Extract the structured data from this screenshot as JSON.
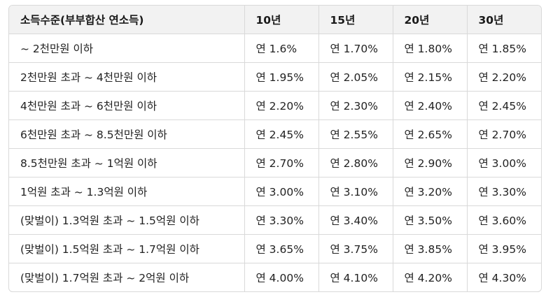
{
  "table": {
    "headers": [
      "소득수준(부부합산 연소득)",
      "10년",
      "15년",
      "20년",
      "30년"
    ],
    "rows": [
      [
        "~ 2천만원 이하",
        "연 1.6%",
        "연 1.70%",
        "연 1.80%",
        "연 1.85%"
      ],
      [
        "2천만원 초과 ~ 4천만원 이하",
        "연 1.95%",
        "연 2.05%",
        "연 2.15%",
        "연 2.20%"
      ],
      [
        "4천만원 초과 ~ 6천만원 이하",
        "연 2.20%",
        "연 2.30%",
        "연 2.40%",
        "연 2.45%"
      ],
      [
        "6천만원 초과 ~ 8.5천만원 이하",
        "연 2.45%",
        "연 2.55%",
        "연 2.65%",
        "연 2.70%"
      ],
      [
        "8.5천만원 초과 ~ 1억원 이하",
        "연 2.70%",
        "연 2.80%",
        "연 2.90%",
        "연 3.00%"
      ],
      [
        "1억원 초과 ~ 1.3억원 이하",
        "연 3.00%",
        "연 3.10%",
        "연 3.20%",
        "연 3.30%"
      ],
      [
        "(맞벌이) 1.3억원 초과 ~ 1.5억원 이하",
        "연 3.30%",
        "연 3.40%",
        "연 3.50%",
        "연 3.60%"
      ],
      [
        "(맞벌이) 1.5억원 초과 ~ 1.7억원 이하",
        "연 3.65%",
        "연 3.75%",
        "연 3.85%",
        "연 3.95%"
      ],
      [
        "(맞벌이) 1.7억원 초과 ~ 2억원 이하",
        "연 4.00%",
        "연 4.10%",
        "연 4.20%",
        "연 4.30%"
      ]
    ]
  }
}
